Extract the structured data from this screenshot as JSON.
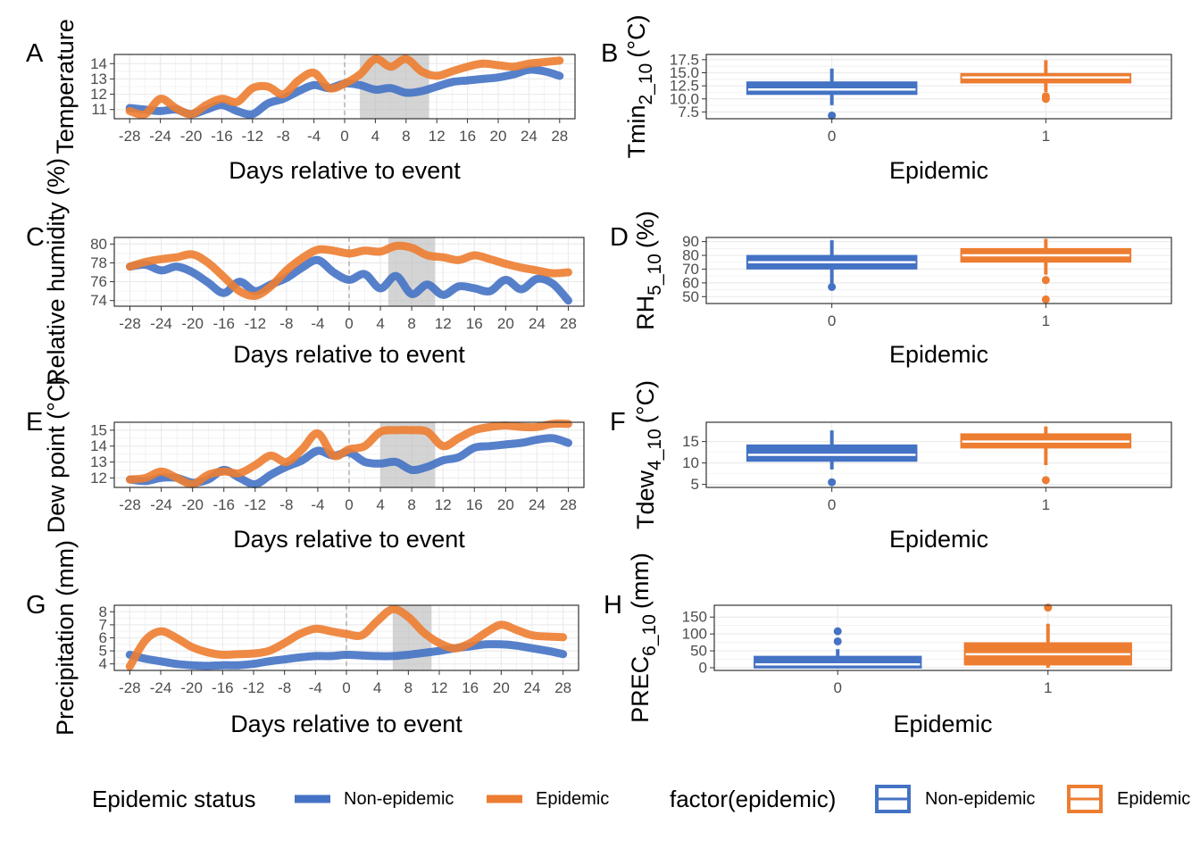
{
  "colors": {
    "non_epidemic": "#4472C4",
    "epidemic": "#ED7D31",
    "grid": "#ebebeb",
    "shade": "#bdbdbd",
    "border": "#333333",
    "zero_line": "#a6a6a6"
  },
  "legends": {
    "left": {
      "title": "Epidemic status",
      "items": [
        "Non-epidemic",
        "Epidemic"
      ]
    },
    "right": {
      "title": "factor(epidemic)",
      "items": [
        "Non-epidemic",
        "Epidemic"
      ]
    }
  },
  "chart_data": [
    {
      "id": "A",
      "type": "line",
      "letter": "A",
      "xlabel": "Days relative to event",
      "ylabel": "Temperature",
      "xlim": [
        -30,
        30
      ],
      "ylim": [
        10.4,
        14.6
      ],
      "x_ticks": [
        -28,
        -24,
        -20,
        -16,
        -12,
        -8,
        -4,
        0,
        4,
        8,
        12,
        16,
        20,
        24,
        28
      ],
      "y_ticks": [
        11,
        12,
        13,
        14
      ],
      "zero_line": true,
      "shade": [
        2,
        11
      ],
      "x": [
        -28,
        -26,
        -24,
        -22,
        -20,
        -18,
        -16,
        -14,
        -12,
        -10,
        -8,
        -6,
        -4,
        -2,
        0,
        2,
        4,
        6,
        8,
        10,
        12,
        14,
        16,
        18,
        20,
        22,
        24,
        26,
        28
      ],
      "series": [
        {
          "name": "Non-epidemic",
          "values": [
            11.1,
            11.0,
            10.9,
            11.0,
            10.7,
            11.0,
            11.3,
            10.9,
            10.7,
            11.4,
            11.7,
            12.2,
            12.6,
            12.4,
            12.7,
            12.6,
            12.3,
            12.4,
            12.1,
            12.2,
            12.5,
            12.8,
            12.9,
            13.0,
            13.1,
            13.3,
            13.6,
            13.5,
            13.2
          ]
        },
        {
          "name": "Epidemic",
          "values": [
            10.9,
            10.7,
            11.7,
            11.1,
            10.7,
            11.3,
            11.7,
            11.5,
            12.4,
            12.5,
            12.0,
            12.9,
            13.4,
            12.4,
            12.7,
            13.3,
            14.3,
            13.8,
            14.3,
            13.5,
            13.2,
            13.5,
            13.8,
            14.0,
            13.9,
            13.8,
            14.0,
            14.1,
            14.2
          ]
        }
      ]
    },
    {
      "id": "B",
      "type": "box",
      "letter": "B",
      "xlabel": "Epidemic",
      "ylabel_main": "Tmin",
      "ylabel_sub": "2_10",
      "ylabel_suffix": "(°C)",
      "ylim": [
        6.2,
        18.5
      ],
      "y_ticks": [
        7.5,
        10.0,
        12.5,
        15.0,
        17.5
      ],
      "y_tick_labels": [
        "7.5",
        "10.0",
        "12.5",
        "15.0",
        "17.5"
      ],
      "categories": [
        "0",
        "1"
      ],
      "boxes": [
        {
          "name": "Non-epidemic",
          "q1": 11.1,
          "median": 11.8,
          "q3": 13.0,
          "whisker_low": 8.8,
          "whisker_high": 15.8,
          "outliers": [
            6.8
          ]
        },
        {
          "name": "Epidemic",
          "q1": 13.3,
          "median": 14.1,
          "q3": 14.6,
          "whisker_low": 11.3,
          "whisker_high": 17.4,
          "outliers": [
            10.0,
            10.5
          ]
        }
      ]
    },
    {
      "id": "C",
      "type": "line",
      "letter": "C",
      "xlabel": "Days relative to event",
      "ylabel": "Relative humidity (%)",
      "xlim": [
        -30,
        30
      ],
      "ylim": [
        73.4,
        80.7
      ],
      "x_ticks": [
        -28,
        -24,
        -20,
        -16,
        -12,
        -8,
        -4,
        0,
        4,
        8,
        12,
        16,
        20,
        24,
        28
      ],
      "y_ticks": [
        74,
        76,
        78,
        80
      ],
      "zero_line": true,
      "shade": [
        5,
        11
      ],
      "x": [
        -28,
        -26,
        -24,
        -22,
        -20,
        -18,
        -16,
        -14,
        -12,
        -10,
        -8,
        -6,
        -4,
        -2,
        0,
        2,
        4,
        6,
        8,
        10,
        12,
        14,
        16,
        18,
        20,
        22,
        24,
        26,
        28
      ],
      "series": [
        {
          "name": "Non-epidemic",
          "values": [
            77.6,
            77.8,
            77.2,
            77.6,
            77.0,
            75.9,
            74.8,
            76.0,
            75.0,
            75.7,
            76.4,
            77.5,
            78.3,
            77.0,
            76.2,
            76.8,
            75.3,
            76.6,
            74.7,
            75.7,
            74.6,
            75.5,
            75.3,
            75.0,
            76.2,
            75.2,
            76.3,
            75.8,
            74.0
          ]
        },
        {
          "name": "Epidemic",
          "values": [
            77.6,
            78.1,
            78.4,
            78.6,
            78.9,
            78.0,
            76.5,
            75.0,
            74.5,
            75.5,
            77.2,
            78.5,
            79.4,
            79.3,
            79.0,
            79.3,
            79.2,
            79.8,
            79.6,
            78.8,
            78.6,
            78.3,
            78.8,
            78.4,
            77.9,
            77.5,
            77.2,
            76.9,
            77.0
          ]
        }
      ]
    },
    {
      "id": "D",
      "type": "box",
      "letter": "D",
      "xlabel": "Epidemic",
      "ylabel_main": "RH",
      "ylabel_sub": "5_10",
      "ylabel_suffix": "(%)",
      "ylim": [
        45,
        93
      ],
      "y_ticks": [
        50,
        60,
        70,
        80,
        90
      ],
      "y_tick_labels": [
        "50",
        "60",
        "70",
        "80",
        "90"
      ],
      "categories": [
        "0",
        "1"
      ],
      "boxes": [
        {
          "name": "Non-epidemic",
          "q1": 71,
          "median": 75,
          "q3": 79,
          "whisker_low": 58,
          "whisker_high": 91,
          "outliers": [
            57
          ]
        },
        {
          "name": "Epidemic",
          "q1": 76,
          "median": 80,
          "q3": 84,
          "whisker_low": 66,
          "whisker_high": 92,
          "outliers": [
            62,
            48
          ]
        }
      ]
    },
    {
      "id": "E",
      "type": "line",
      "letter": "E",
      "xlabel": "Days relative to event",
      "ylabel": "Dew point (°C)",
      "xlim": [
        -30,
        30
      ],
      "ylim": [
        11.4,
        15.5
      ],
      "x_ticks": [
        -28,
        -24,
        -20,
        -16,
        -12,
        -8,
        -4,
        0,
        4,
        8,
        12,
        16,
        20,
        24,
        28
      ],
      "y_ticks": [
        12,
        13,
        14,
        15
      ],
      "zero_line": true,
      "shade": [
        4,
        11
      ],
      "x": [
        -28,
        -26,
        -24,
        -22,
        -20,
        -18,
        -16,
        -14,
        -12,
        -10,
        -8,
        -6,
        -4,
        -2,
        0,
        2,
        4,
        6,
        8,
        10,
        12,
        14,
        16,
        18,
        20,
        22,
        24,
        26,
        28
      ],
      "series": [
        {
          "name": "Non-epidemic",
          "values": [
            11.9,
            11.8,
            12.0,
            12.0,
            11.7,
            11.9,
            12.5,
            12.0,
            11.6,
            12.2,
            12.7,
            13.1,
            13.7,
            13.4,
            13.6,
            13.0,
            12.9,
            13.0,
            12.5,
            12.7,
            13.1,
            13.3,
            13.9,
            14.0,
            14.1,
            14.2,
            14.4,
            14.5,
            14.2
          ]
        },
        {
          "name": "Epidemic",
          "values": [
            11.9,
            12.0,
            12.4,
            12.0,
            11.6,
            12.2,
            12.4,
            12.3,
            12.8,
            13.4,
            13.0,
            13.8,
            14.8,
            13.4,
            13.8,
            14.0,
            14.9,
            15.0,
            15.0,
            14.9,
            14.0,
            14.5,
            15.0,
            15.2,
            15.3,
            15.2,
            15.2,
            15.4,
            15.4
          ]
        }
      ]
    },
    {
      "id": "F",
      "type": "box",
      "letter": "F",
      "xlabel": "Epidemic",
      "ylabel_main": "Tdew",
      "ylabel_sub": "4_10",
      "ylabel_suffix": "(°C)",
      "ylim": [
        4.3,
        19.5
      ],
      "y_ticks": [
        5,
        10,
        15
      ],
      "y_tick_labels": [
        "5",
        "10",
        "15"
      ],
      "categories": [
        "0",
        "1"
      ],
      "boxes": [
        {
          "name": "Non-epidemic",
          "q1": 10.7,
          "median": 11.9,
          "q3": 13.9,
          "whisker_low": 8.5,
          "whisker_high": 17.6,
          "outliers": [
            5.5
          ]
        },
        {
          "name": "Epidemic",
          "q1": 13.8,
          "median": 15.0,
          "q3": 16.5,
          "whisker_low": 9.5,
          "whisker_high": 18.5,
          "outliers": [
            6.0
          ]
        }
      ]
    },
    {
      "id": "G",
      "type": "line",
      "letter": "G",
      "xlabel": "Days relative to event",
      "ylabel": "Precipitation (mm)",
      "xlim": [
        -30,
        30
      ],
      "ylim": [
        3.5,
        8.5
      ],
      "x_ticks": [
        -28,
        -24,
        -20,
        -16,
        -12,
        -8,
        -4,
        0,
        4,
        8,
        12,
        16,
        20,
        24,
        28
      ],
      "y_ticks": [
        4,
        5,
        6,
        7,
        8
      ],
      "zero_line": true,
      "shade": [
        6,
        11
      ],
      "x": [
        -28,
        -26,
        -24,
        -22,
        -20,
        -18,
        -16,
        -14,
        -12,
        -10,
        -8,
        -6,
        -4,
        -2,
        0,
        2,
        4,
        6,
        8,
        10,
        12,
        14,
        16,
        18,
        20,
        22,
        24,
        26,
        28
      ],
      "series": [
        {
          "name": "Non-epidemic",
          "values": [
            4.7,
            4.4,
            4.2,
            4.0,
            3.9,
            3.85,
            3.9,
            3.9,
            4.0,
            4.2,
            4.35,
            4.5,
            4.6,
            4.6,
            4.7,
            4.65,
            4.6,
            4.6,
            4.7,
            4.85,
            5.0,
            5.2,
            5.35,
            5.5,
            5.5,
            5.4,
            5.2,
            5.0,
            4.75
          ]
        },
        {
          "name": "Epidemic",
          "values": [
            3.8,
            5.8,
            6.5,
            6.0,
            5.3,
            4.9,
            4.7,
            4.75,
            4.8,
            5.0,
            5.6,
            6.3,
            6.7,
            6.5,
            6.3,
            6.2,
            7.3,
            8.2,
            7.6,
            6.4,
            5.6,
            5.2,
            5.6,
            6.4,
            7.0,
            6.6,
            6.2,
            6.1,
            6.05
          ]
        }
      ]
    },
    {
      "id": "H",
      "type": "box",
      "letter": "H",
      "xlabel": "Epidemic",
      "ylabel_main": "PREC",
      "ylabel_sub": "6_10",
      "ylabel_suffix": "(mm)",
      "ylim": [
        -8,
        185
      ],
      "y_ticks": [
        0,
        50,
        100,
        150
      ],
      "y_tick_labels": [
        "0",
        "50",
        "100",
        "150"
      ],
      "categories": [
        "0",
        "1"
      ],
      "boxes": [
        {
          "name": "Non-epidemic",
          "q1": 3,
          "median": 10,
          "q3": 30,
          "whisker_low": 0,
          "whisker_high": 55,
          "outliers": [
            78,
            108
          ]
        },
        {
          "name": "Epidemic",
          "q1": 12,
          "median": 40,
          "q3": 70,
          "whisker_low": 0,
          "whisker_high": 130,
          "outliers": [
            178
          ]
        }
      ]
    }
  ]
}
